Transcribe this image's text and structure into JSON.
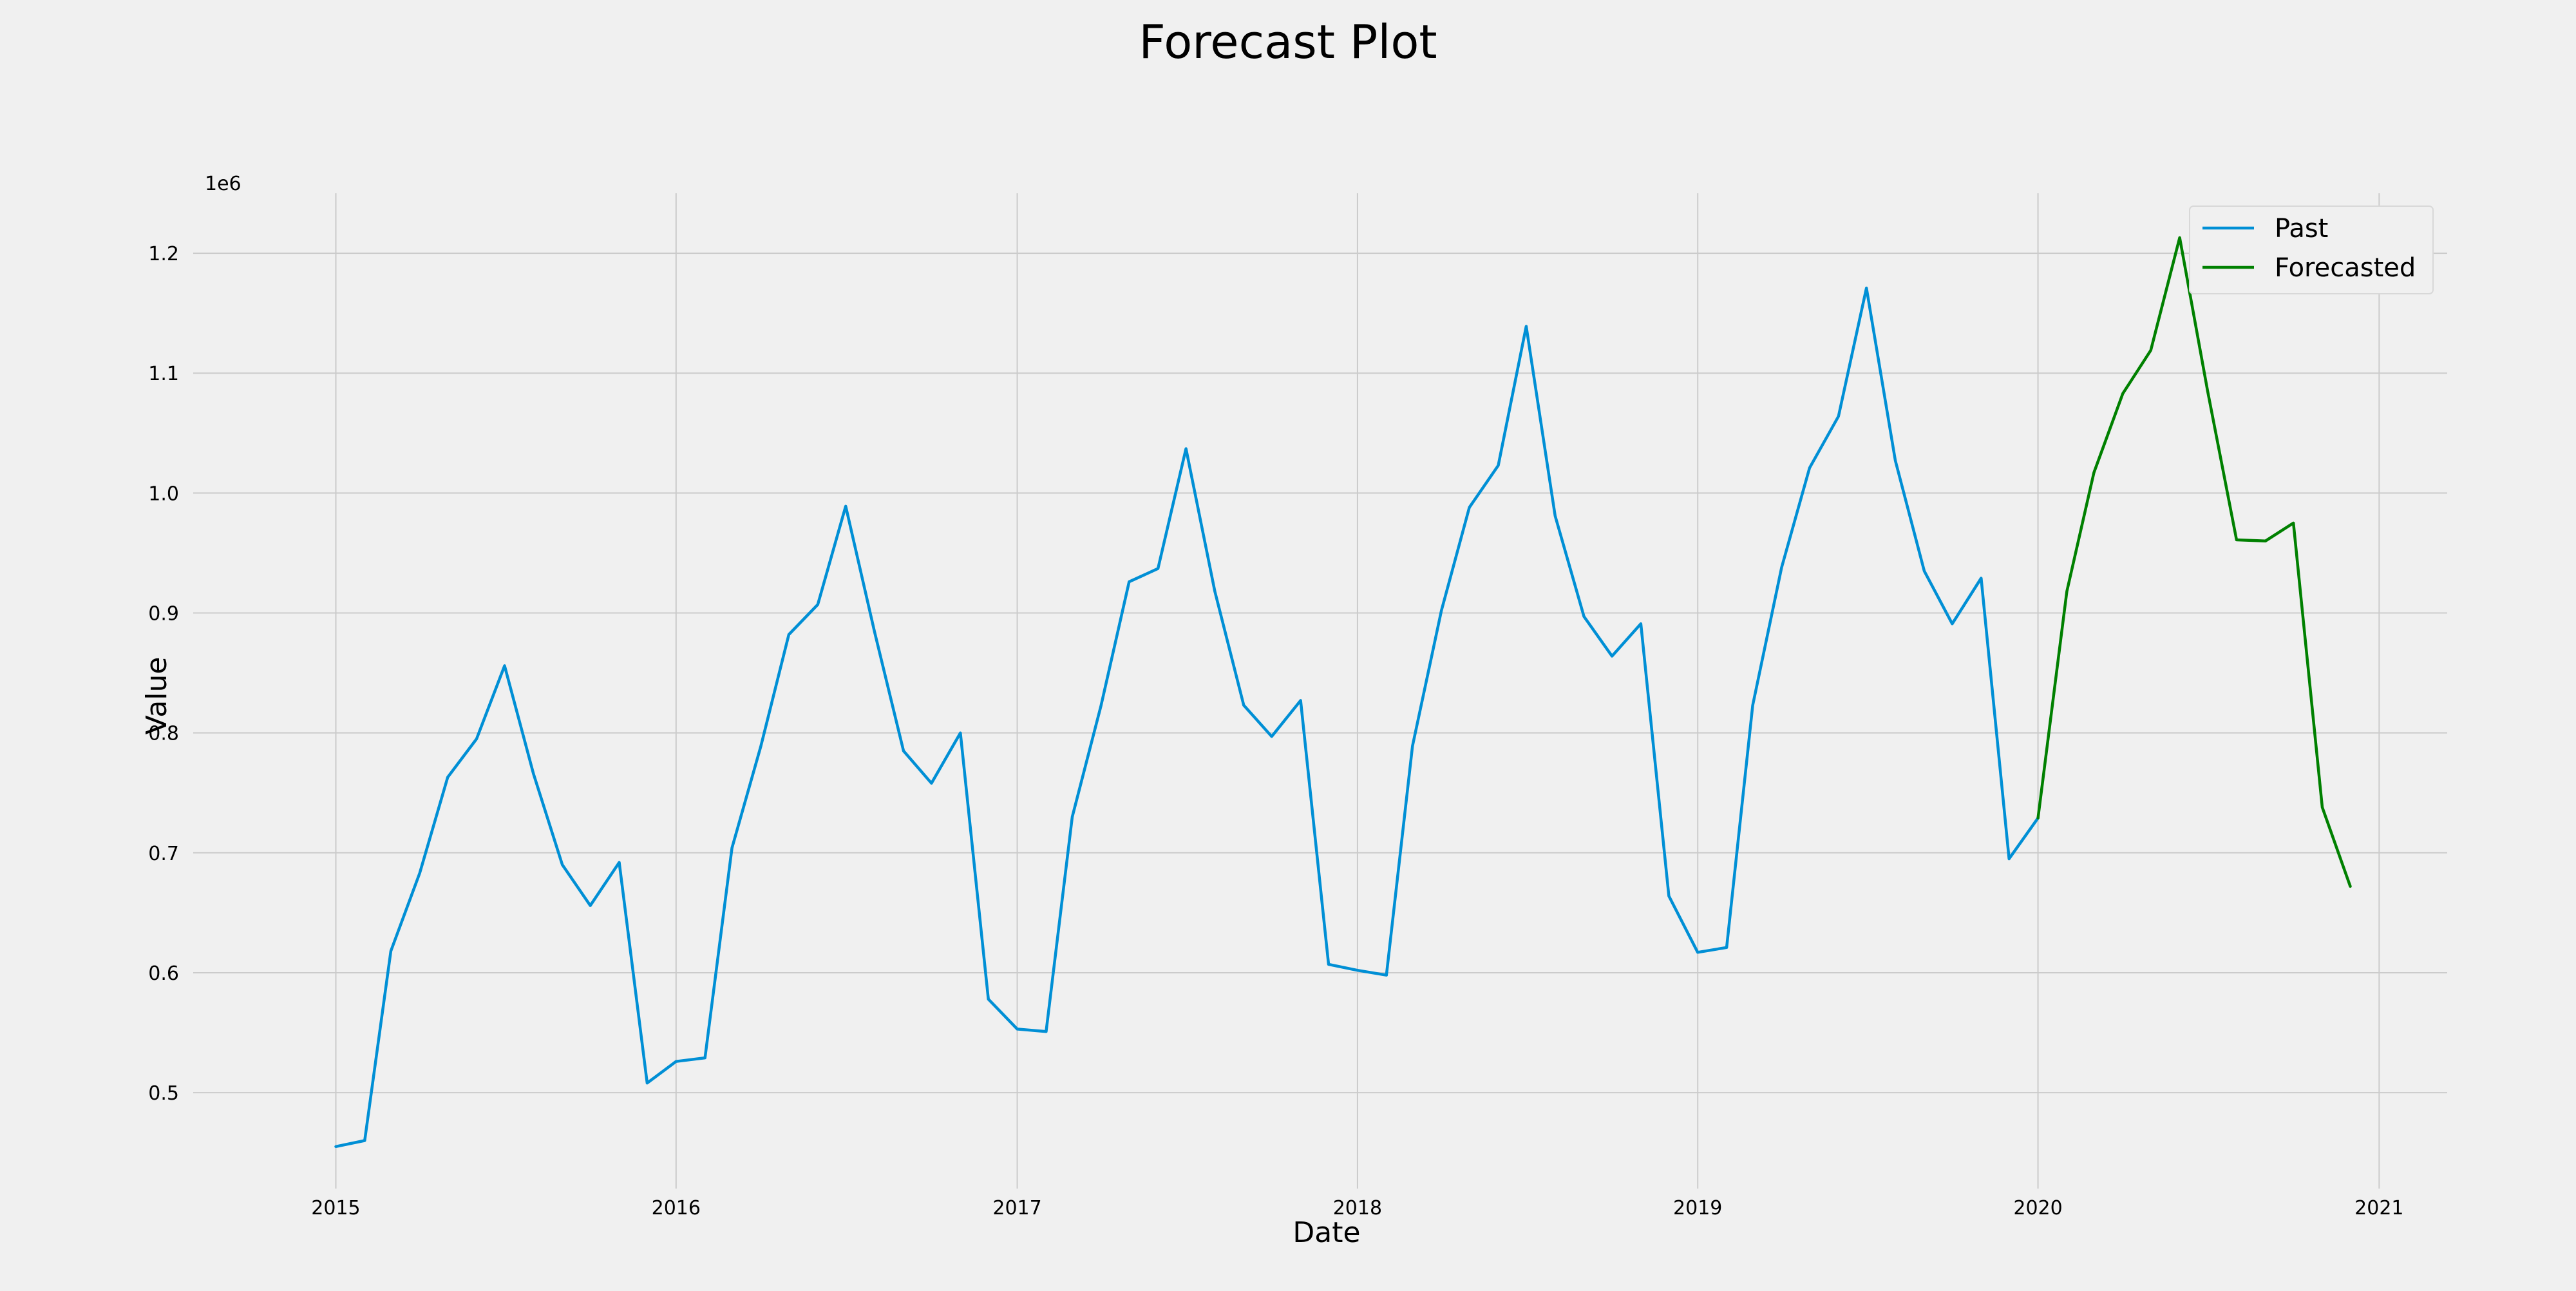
{
  "chart_data": {
    "type": "line",
    "title": "Forecast Plot",
    "xlabel": "Date",
    "ylabel": "Value",
    "y_offset_label": "1e6",
    "y_multiplier": 1000000,
    "xlim": [
      "2014-08-01",
      "2021-03-15"
    ],
    "ylim": [
      0.42,
      1.25
    ],
    "x_ticks": [
      "2015-01-01",
      "2016-01-01",
      "2017-01-01",
      "2018-01-01",
      "2019-01-01",
      "2020-01-01",
      "2021-01-01"
    ],
    "x_tick_labels": [
      "2015",
      "2016",
      "2017",
      "2018",
      "2019",
      "2020",
      "2021"
    ],
    "y_ticks": [
      0.5,
      0.6,
      0.7,
      0.8,
      0.9,
      1.0,
      1.1,
      1.2
    ],
    "y_tick_labels": [
      "0.5",
      "0.6",
      "0.7",
      "0.8",
      "0.9",
      "1.0",
      "1.1",
      "1.2"
    ],
    "grid": true,
    "legend_position": "top-right",
    "series": [
      {
        "name": "Past",
        "color": "#008fd5",
        "x": [
          "2015-01-01",
          "2015-02-01",
          "2015-03-01",
          "2015-04-01",
          "2015-05-01",
          "2015-06-01",
          "2015-07-01",
          "2015-08-01",
          "2015-09-01",
          "2015-10-01",
          "2015-11-01",
          "2015-12-01",
          "2016-01-01",
          "2016-02-01",
          "2016-03-01",
          "2016-04-01",
          "2016-05-01",
          "2016-06-01",
          "2016-07-01",
          "2016-08-01",
          "2016-09-01",
          "2016-10-01",
          "2016-11-01",
          "2016-12-01",
          "2017-01-01",
          "2017-02-01",
          "2017-03-01",
          "2017-04-01",
          "2017-05-01",
          "2017-06-01",
          "2017-07-01",
          "2017-08-01",
          "2017-09-01",
          "2017-10-01",
          "2017-11-01",
          "2017-12-01",
          "2018-01-01",
          "2018-02-01",
          "2018-03-01",
          "2018-04-01",
          "2018-05-01",
          "2018-06-01",
          "2018-07-01",
          "2018-08-01",
          "2018-09-01",
          "2018-10-01",
          "2018-11-01",
          "2018-12-01",
          "2019-01-01",
          "2019-02-01",
          "2019-03-01",
          "2019-04-01",
          "2019-05-01",
          "2019-06-01",
          "2019-07-01",
          "2019-08-01",
          "2019-09-01",
          "2019-10-01",
          "2019-11-01",
          "2019-12-01",
          "2020-01-01"
        ],
        "values": [
          0.455,
          0.46,
          0.618,
          0.683,
          0.763,
          0.795,
          0.856,
          0.766,
          0.69,
          0.656,
          0.692,
          0.508,
          0.526,
          0.529,
          0.704,
          0.789,
          0.882,
          0.907,
          0.989,
          0.884,
          0.785,
          0.758,
          0.8,
          0.578,
          0.553,
          0.551,
          0.73,
          0.823,
          0.926,
          0.937,
          1.037,
          0.918,
          0.823,
          0.797,
          0.827,
          0.607,
          0.602,
          0.598,
          0.789,
          0.902,
          0.988,
          1.023,
          1.139,
          0.981,
          0.897,
          0.864,
          0.891,
          0.664,
          0.617,
          0.621,
          0.823,
          0.938,
          1.021,
          1.064,
          1.171,
          1.027,
          0.935,
          0.891,
          0.929,
          0.695,
          0.729
        ]
      },
      {
        "name": "Forecasted",
        "color": "#008000",
        "x": [
          "2020-01-01",
          "2020-02-01",
          "2020-03-01",
          "2020-04-01",
          "2020-05-01",
          "2020-06-01",
          "2020-07-01",
          "2020-08-01",
          "2020-09-01",
          "2020-10-01",
          "2020-11-01",
          "2020-12-01"
        ],
        "values": [
          0.729,
          0.918,
          1.017,
          1.083,
          1.119,
          1.213,
          1.085,
          0.961,
          0.96,
          0.975,
          0.738,
          0.672
        ]
      }
    ]
  }
}
